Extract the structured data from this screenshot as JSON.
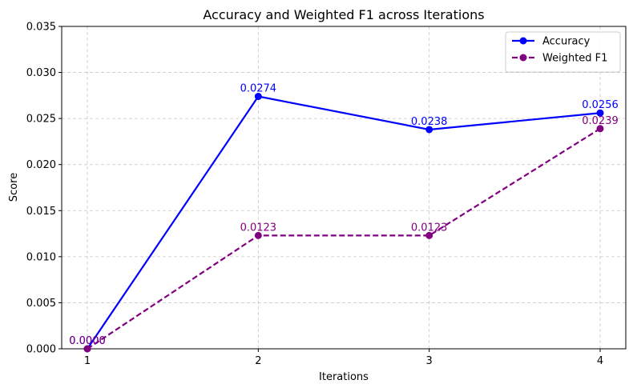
{
  "chart_data": {
    "type": "line",
    "title": "Accuracy and Weighted F1 across Iterations",
    "xlabel": "Iterations",
    "ylabel": "Score",
    "x": [
      1,
      2,
      3,
      4
    ],
    "x_tick_labels": [
      "1",
      "2",
      "3",
      "4"
    ],
    "xlim": [
      0.85,
      4.15
    ],
    "ylim": [
      0,
      0.035
    ],
    "y_ticks": [
      0.0,
      0.005,
      0.01,
      0.015,
      0.02,
      0.025,
      0.03,
      0.035
    ],
    "y_tick_labels": [
      "0.000",
      "0.005",
      "0.010",
      "0.015",
      "0.020",
      "0.025",
      "0.030",
      "0.035"
    ],
    "grid": true,
    "legend_position": "top-right",
    "series": [
      {
        "name": "Accuracy",
        "values": [
          0.0,
          0.0274,
          0.0238,
          0.0256
        ],
        "labels": [
          "0.0000",
          "0.0274",
          "0.0238",
          "0.0256"
        ],
        "color": "#0000ff",
        "line_style": "solid",
        "marker": "circle"
      },
      {
        "name": "Weighted F1",
        "values": [
          0.0,
          0.0123,
          0.0123,
          0.0239
        ],
        "labels": [
          "0.0000",
          "0.0123",
          "0.0123",
          "0.0239"
        ],
        "color": "#800080",
        "line_style": "dashed",
        "marker": "circle"
      }
    ]
  }
}
